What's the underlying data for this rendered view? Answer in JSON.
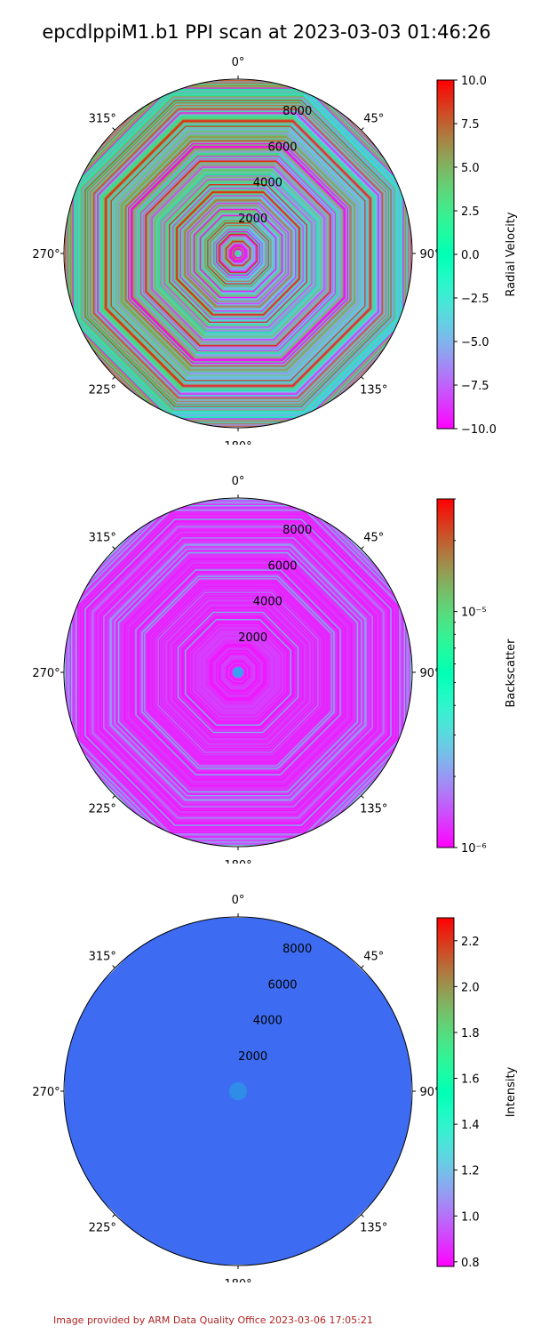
{
  "title": "epcdlppiM1.b1 PPI scan at 2023-03-03 01:46:26",
  "footer": "Image provided by ARM Data Quality Office 2023-03-06 17:05:21",
  "colors": {
    "footer": "#b22222",
    "intensity_fill": "#3d6cf2",
    "backscatter_base": "#7a2cf4"
  },
  "chart_data": [
    {
      "type": "heatmap",
      "projection": "polar",
      "title": "",
      "angle_ticks": [
        "0°",
        "45°",
        "90°",
        "135°",
        "180°",
        "225°",
        "270°",
        "315°"
      ],
      "radial_ticks": [
        "2000",
        "4000",
        "6000",
        "8000"
      ],
      "radial_tick_values": [
        2000,
        4000,
        6000,
        8000
      ],
      "rmax": 9000,
      "scan_radius": 9000,
      "colorbar": {
        "label": "Radial Velocity",
        "scale": "linear",
        "colormap": "rainbow",
        "range": [
          -10,
          10
        ],
        "ticks": [
          "10.0",
          "7.5",
          "5.0",
          "2.5",
          "0.0",
          "−2.5",
          "−5.0",
          "−7.5",
          "−10.0"
        ],
        "tick_values": [
          10,
          7.5,
          5,
          2.5,
          0,
          -2.5,
          -5,
          -7.5,
          -10
        ]
      },
      "pattern": "mixed"
    },
    {
      "type": "heatmap",
      "projection": "polar",
      "title": "",
      "angle_ticks": [
        "0°",
        "45°",
        "90°",
        "135°",
        "180°",
        "225°",
        "270°",
        "315°"
      ],
      "radial_ticks": [
        "2000",
        "4000",
        "6000",
        "8000"
      ],
      "radial_tick_values": [
        2000,
        4000,
        6000,
        8000
      ],
      "rmax": 9000,
      "scan_radius": 9000,
      "colorbar": {
        "label": "Backscatter",
        "scale": "log",
        "colormap": "rainbow",
        "range": [
          1e-06,
          3e-05
        ],
        "ticks": [
          "10⁻⁵",
          "10⁻⁶"
        ],
        "tick_values": [
          1e-05,
          1e-06
        ]
      },
      "pattern": "low"
    },
    {
      "type": "heatmap",
      "projection": "polar",
      "title": "",
      "angle_ticks": [
        "0°",
        "45°",
        "90°",
        "135°",
        "180°",
        "225°",
        "270°",
        "315°"
      ],
      "radial_ticks": [
        "2000",
        "4000",
        "6000",
        "8000"
      ],
      "radial_tick_values": [
        2000,
        4000,
        6000,
        8000
      ],
      "rmax": 9000,
      "scan_radius": 9000,
      "colorbar": {
        "label": "Intensity",
        "scale": "linear",
        "colormap": "rainbow",
        "range": [
          0.78,
          2.3
        ],
        "ticks": [
          "2.2",
          "2.0",
          "1.8",
          "1.6",
          "1.4",
          "1.2",
          "1.0",
          "0.8"
        ],
        "tick_values": [
          2.2,
          2.0,
          1.8,
          1.6,
          1.4,
          1.2,
          1.0,
          0.8
        ]
      },
      "pattern": "uniform",
      "uniform_value": 1.02
    }
  ]
}
